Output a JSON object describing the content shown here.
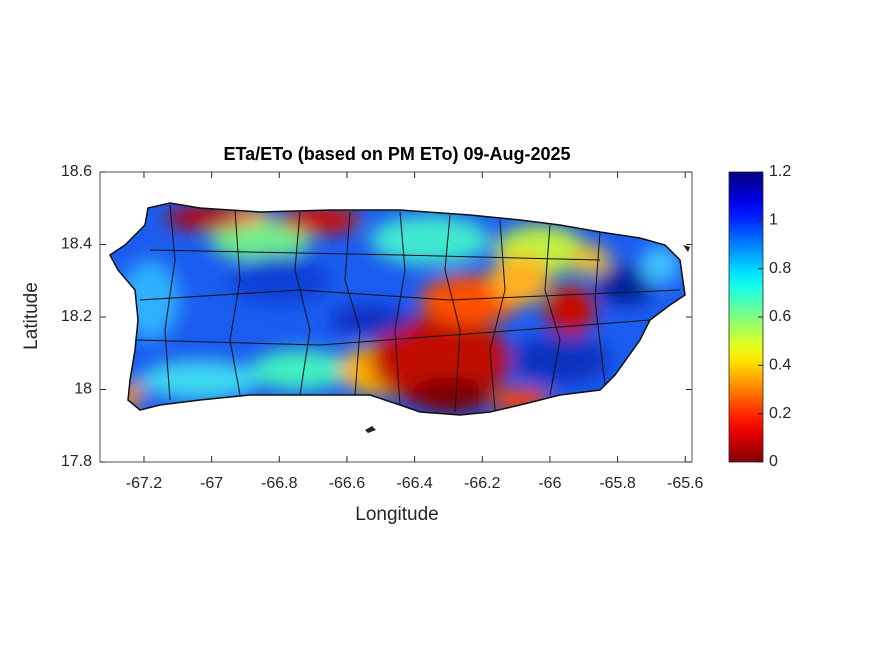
{
  "chart_data": {
    "type": "map",
    "title": "ETa/ETo (based on PM ETo) 09-Aug-2025",
    "xlabel": "Longitude",
    "ylabel": "Latitude",
    "xlim": [
      -67.33,
      -65.58
    ],
    "xticks": [
      -67.2,
      -67,
      -66.8,
      -66.6,
      -66.4,
      -66.2,
      -66,
      -65.8,
      -65.6
    ],
    "ylim": [
      17.8,
      18.6
    ],
    "yticks": [
      17.8,
      18,
      18.2,
      18.4,
      18.6
    ],
    "colormap": "jet",
    "colormap_reversed": true,
    "colorbar": {
      "lim": [
        0,
        1.2
      ],
      "ticks": [
        0,
        0.2,
        0.4,
        0.6,
        0.8,
        1,
        1.2
      ]
    }
  }
}
